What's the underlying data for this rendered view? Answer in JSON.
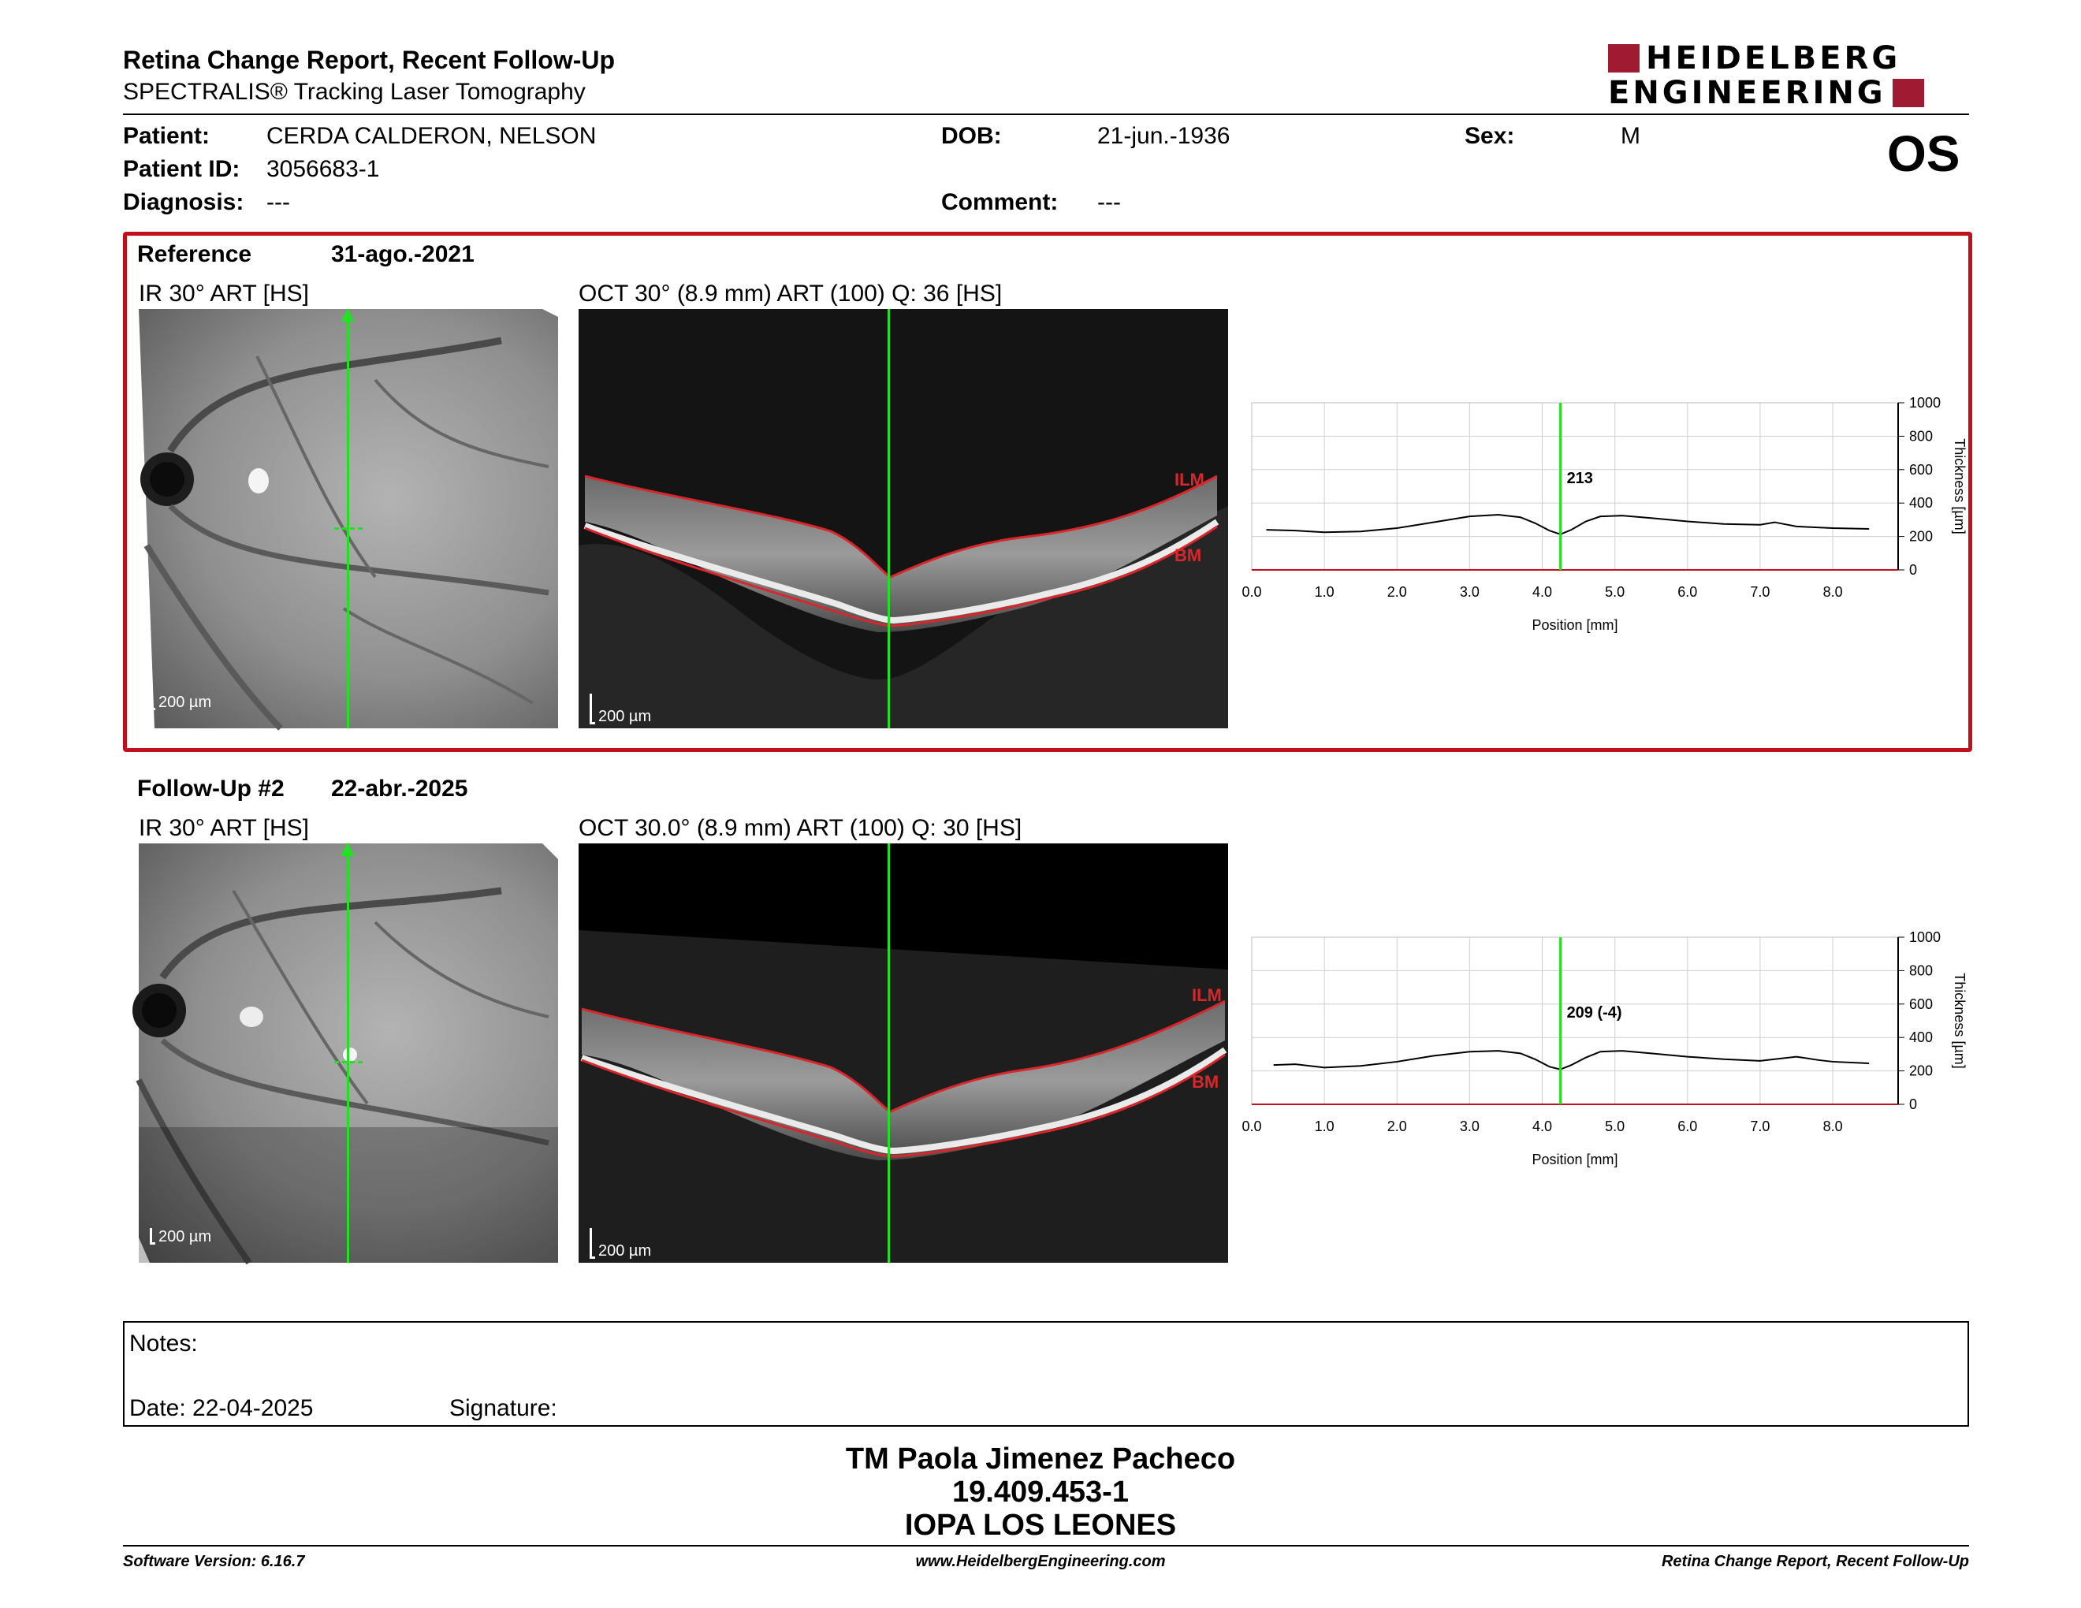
{
  "header": {
    "title": "Retina Change Report, Recent Follow-Up",
    "subtitle": "SPECTRALIS® Tracking Laser Tomography",
    "logo_line1": "HEIDELBERG",
    "logo_line2": "ENGINEERING",
    "eye": "OS"
  },
  "patient": {
    "name_label": "Patient:",
    "name": "CERDA CALDERON, NELSON",
    "id_label": "Patient ID:",
    "id": "3056683-1",
    "diagnosis_label": "Diagnosis:",
    "diagnosis": "---",
    "dob_label": "DOB:",
    "dob": "21-jun.-1936",
    "comment_label": "Comment:",
    "comment": "---",
    "sex_label": "Sex:",
    "sex": "M"
  },
  "reference": {
    "label": "Reference",
    "date": "31-ago.-2021",
    "ir_title": "IR 30° ART [HS]",
    "oct_title": "OCT 30° (8.9 mm) ART (100) Q: 36 [HS]",
    "scale": "200 µm",
    "ilm": "ILM",
    "bm": "BM",
    "value_label": "213"
  },
  "followup": {
    "label": "Follow-Up #2",
    "date": "22-abr.-2025",
    "ir_title": "IR 30° ART [HS]",
    "oct_title": "OCT 30.0° (8.9 mm) ART (100) Q: 30 [HS]",
    "scale": "200 µm",
    "ilm": "ILM",
    "bm": "BM",
    "value_label": "209 (-4)"
  },
  "chart_data": [
    {
      "type": "line",
      "xlabel": "Position [mm]",
      "ylabel": "Thickness [µm]",
      "xlim": [
        0,
        8.9
      ],
      "ylim": [
        0,
        1000
      ],
      "xticks": [
        "0.0",
        "1.0",
        "2.0",
        "3.0",
        "4.0",
        "5.0",
        "6.0",
        "7.0",
        "8.0"
      ],
      "yticks": [
        "0",
        "200",
        "400",
        "600",
        "800",
        "1000"
      ],
      "cursor_x": 4.25,
      "x": [
        0.2,
        0.6,
        1.0,
        1.5,
        2.0,
        2.5,
        3.0,
        3.4,
        3.7,
        3.9,
        4.1,
        4.25,
        4.4,
        4.6,
        4.8,
        5.1,
        5.5,
        6.0,
        6.5,
        7.0,
        7.2,
        7.5,
        8.0,
        8.5
      ],
      "y": [
        240,
        235,
        225,
        230,
        250,
        285,
        320,
        330,
        315,
        280,
        235,
        213,
        240,
        290,
        320,
        325,
        310,
        290,
        275,
        270,
        285,
        260,
        250,
        245
      ]
    },
    {
      "type": "line",
      "xlabel": "Position [mm]",
      "ylabel": "Thickness [µm]",
      "xlim": [
        0,
        8.9
      ],
      "ylim": [
        0,
        1000
      ],
      "xticks": [
        "0.0",
        "1.0",
        "2.0",
        "3.0",
        "4.0",
        "5.0",
        "6.0",
        "7.0",
        "8.0"
      ],
      "yticks": [
        "0",
        "200",
        "400",
        "600",
        "800",
        "1000"
      ],
      "cursor_x": 4.25,
      "x": [
        0.3,
        0.6,
        1.0,
        1.5,
        2.0,
        2.5,
        3.0,
        3.4,
        3.7,
        3.9,
        4.1,
        4.25,
        4.4,
        4.6,
        4.8,
        5.1,
        5.5,
        6.0,
        6.5,
        7.0,
        7.2,
        7.5,
        7.8,
        8.0,
        8.5
      ],
      "y": [
        235,
        240,
        220,
        230,
        255,
        290,
        315,
        320,
        305,
        270,
        225,
        209,
        235,
        280,
        315,
        320,
        305,
        285,
        270,
        260,
        270,
        285,
        265,
        255,
        245
      ]
    }
  ],
  "notes": {
    "label": "Notes:",
    "date": "Date: 22-04-2025",
    "signature": "Signature:"
  },
  "signer": {
    "name": "TM Paola Jimenez Pacheco",
    "rut": "19.409.453-1",
    "org": "IOPA LOS LEONES"
  },
  "footer": {
    "software": "Software Version: 6.16.7",
    "url": "www.HeidelbergEngineering.com",
    "report": "Retina Change Report, Recent Follow-Up"
  }
}
